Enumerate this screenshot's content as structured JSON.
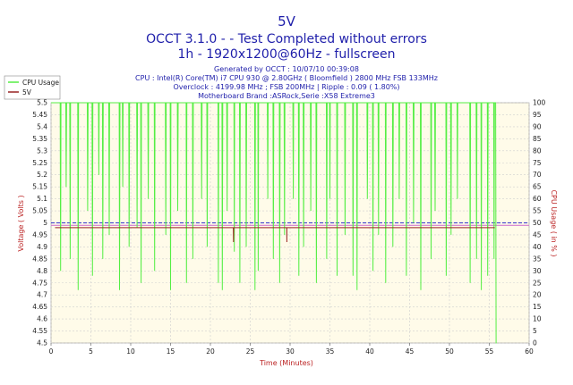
{
  "chart_data": {
    "type": "line",
    "title": "5V",
    "subtitle_lines": [
      "OCCT 3.1.0 -  - Test Completed without errors",
      "1h - 1920x1200@60Hz - fullscreen"
    ],
    "info_lines": [
      "Generated by OCCT : 10/07/10 00:39:08",
      "CPU : Intel(R) Core(TM) i7 CPU 930 @ 2.80GHz ( Bloomfield ) 2800 MHz FSB 133MHz",
      "Overclock : 4199.98 MHz ; FSB 200MHz | Ripple : 0.09 ( 1.80%)",
      "Motherboard Brand :ASRock,Serie :X58 Extreme3"
    ],
    "xlabel": "Time (Minutes)",
    "ylabel_left": "Voltage ( Volts )",
    "ylabel_right": "CPU Usage ( in % )",
    "xlim": [
      0,
      60
    ],
    "ylim_left": [
      4.5,
      5.5
    ],
    "ylim_right": [
      0,
      100
    ],
    "xticks": [
      "0",
      "5",
      "10",
      "15",
      "20",
      "25",
      "30",
      "35",
      "40",
      "45",
      "50",
      "55",
      "60"
    ],
    "yticks_left": [
      "4.5",
      "4.55",
      "4.6",
      "4.65",
      "4.7",
      "4.75",
      "4.8",
      "4.85",
      "4.9",
      "4.95",
      "5",
      "5.05",
      "5.1",
      "5.15",
      "5.2",
      "5.25",
      "5.3",
      "5.35",
      "5.4",
      "5.45",
      "5.5"
    ],
    "yticks_right": [
      "0",
      "5",
      "10",
      "15",
      "20",
      "25",
      "30",
      "35",
      "40",
      "45",
      "50",
      "55",
      "60",
      "65",
      "70",
      "75",
      "80",
      "85",
      "90",
      "95",
      "100"
    ],
    "grid": true,
    "legend_position": "top-left",
    "series": [
      {
        "name": "CPU Usage",
        "axis": "right",
        "color": "#55ee44",
        "baseline_value": 100,
        "dips_minutes": [
          1.2,
          1.9,
          2.4,
          3.4,
          4.6,
          5.2,
          6.0,
          6.5,
          7.3,
          8.6,
          9.0,
          9.8,
          10.8,
          11.3,
          12.2,
          13.0,
          14.4,
          15.0,
          15.9,
          17.0,
          17.8,
          18.9,
          19.6,
          21.0,
          21.5,
          22.1,
          23.0,
          23.7,
          24.5,
          25.6,
          26.0,
          27.2,
          27.9,
          28.7,
          29.3,
          30.4,
          31.1,
          31.7,
          32.6,
          33.3,
          34.6,
          35.0,
          35.9,
          36.9,
          37.9,
          38.4,
          39.7,
          40.4,
          41.1,
          42.0,
          42.9,
          43.7,
          44.6,
          45.5,
          46.4,
          47.7,
          48.2,
          49.6,
          50.2,
          51.0,
          52.6,
          53.4,
          54.0,
          54.8,
          55.6
        ],
        "dips_depth": [
          30,
          65,
          35,
          22,
          55,
          28,
          70,
          35,
          45,
          22,
          65,
          40,
          48,
          25,
          60,
          30,
          45,
          22,
          55,
          25,
          35,
          60,
          40,
          25,
          22,
          55,
          38,
          25,
          40,
          22,
          30,
          60,
          35,
          25,
          45,
          60,
          28,
          40,
          55,
          25,
          35,
          60,
          28,
          45,
          28,
          22,
          60,
          30,
          45,
          25,
          40,
          60,
          28,
          50,
          22,
          35,
          55,
          28,
          45,
          60,
          25,
          35,
          22,
          28,
          35
        ],
        "final_drop_minute": 55.8,
        "final_value": 0
      },
      {
        "name": "5V",
        "axis": "left",
        "color": "#992222",
        "baseline_value": 4.98,
        "ripple_low": 4.97,
        "spikes": [
          {
            "minute": 22.9,
            "value": 4.92
          },
          {
            "minute": 29.6,
            "value": 4.92
          }
        ]
      }
    ],
    "reference_lines": [
      {
        "value": 5.0,
        "color": "#3333cc",
        "style": "dashed"
      },
      {
        "value": 4.99,
        "color": "#cc66cc",
        "style": "solid"
      }
    ]
  }
}
